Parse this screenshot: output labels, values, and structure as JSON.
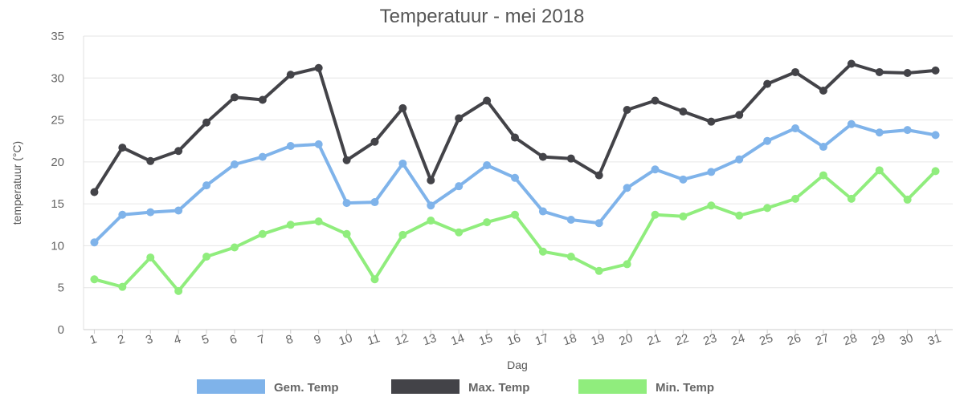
{
  "chart_data": {
    "type": "line",
    "title": "Temperatuur - mei 2018",
    "xlabel": "Dag",
    "ylabel": "temperatuur (°C)",
    "ylim": [
      0,
      35
    ],
    "yticks": [
      0,
      5,
      10,
      15,
      20,
      25,
      30,
      35
    ],
    "grid": true,
    "legend_position": "bottom",
    "categories": [
      "1",
      "2",
      "3",
      "4",
      "5",
      "6",
      "7",
      "8",
      "9",
      "10",
      "11",
      "12",
      "13",
      "14",
      "15",
      "16",
      "17",
      "18",
      "19",
      "20",
      "21",
      "22",
      "23",
      "24",
      "25",
      "26",
      "27",
      "28",
      "29",
      "30",
      "31"
    ],
    "series": [
      {
        "name": "Gem. Temp",
        "color": "#7fb3ea",
        "values": [
          10.4,
          13.7,
          14.0,
          14.2,
          17.2,
          19.7,
          20.6,
          21.9,
          22.1,
          15.1,
          15.2,
          19.8,
          14.8,
          17.1,
          19.6,
          18.1,
          14.1,
          13.1,
          12.7,
          16.9,
          19.1,
          17.9,
          18.8,
          20.3,
          22.5,
          24.0,
          21.8,
          24.5,
          23.5,
          23.8,
          23.2
        ]
      },
      {
        "name": "Max. Temp",
        "color": "#434348",
        "values": [
          16.4,
          21.7,
          20.1,
          21.3,
          24.7,
          27.7,
          27.4,
          30.4,
          31.2,
          20.2,
          22.4,
          26.4,
          17.8,
          25.2,
          27.3,
          22.9,
          20.6,
          20.4,
          18.4,
          26.2,
          27.3,
          26.0,
          24.8,
          25.6,
          29.3,
          30.7,
          28.5,
          31.7,
          30.7,
          30.6,
          30.9
        ]
      },
      {
        "name": "Min. Temp",
        "color": "#90ed7d",
        "values": [
          6.0,
          5.1,
          8.6,
          4.6,
          8.7,
          9.8,
          11.4,
          12.5,
          12.9,
          11.4,
          6.0,
          11.3,
          13.0,
          11.6,
          12.8,
          13.7,
          9.3,
          8.7,
          7.0,
          7.8,
          13.7,
          13.5,
          14.8,
          13.6,
          14.5,
          15.6,
          18.4,
          15.6,
          19.0,
          15.5,
          18.9
        ]
      }
    ]
  }
}
